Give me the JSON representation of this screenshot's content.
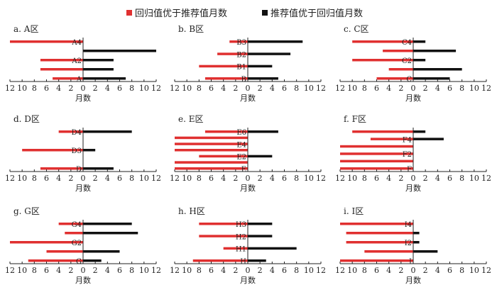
{
  "legend": {
    "red_label": "回归值优于推荐值月数",
    "black_label": "推荐值优于回归值月数"
  },
  "colors": {
    "red": "#e03030",
    "black": "#111111",
    "axis": "#222222"
  },
  "chart_data": [
    {
      "type": "bar",
      "orientation": "diverging-horizontal",
      "title": "a. A区",
      "xlabel": "月数",
      "xlim": [
        -12,
        12
      ],
      "ticks": [
        12,
        10,
        8,
        6,
        4,
        2,
        0,
        2,
        4,
        6,
        8,
        10,
        12
      ],
      "categories": [
        "A4",
        "",
        "A2",
        "",
        "A"
      ],
      "series": [
        {
          "name": "回归值优于推荐值月数",
          "values": [
            12,
            0,
            7,
            7,
            5
          ]
        },
        {
          "name": "推荐值优于回归值月数",
          "values": [
            0,
            12,
            5,
            5,
            7
          ]
        }
      ]
    },
    {
      "type": "bar",
      "orientation": "diverging-horizontal",
      "title": "b. B区",
      "xlabel": "月数",
      "xlim": [
        -12,
        12
      ],
      "ticks": [
        12,
        10,
        8,
        6,
        4,
        2,
        0,
        2,
        4,
        6,
        8,
        10,
        12
      ],
      "categories": [
        "B3",
        "B2",
        "B1",
        "B"
      ],
      "series": [
        {
          "name": "回归值优于推荐值月数",
          "values": [
            3,
            5,
            8,
            7
          ]
        },
        {
          "name": "推荐值优于回归值月数",
          "values": [
            9,
            7,
            4,
            5
          ]
        }
      ]
    },
    {
      "type": "bar",
      "orientation": "diverging-horizontal",
      "title": "c. C区",
      "xlabel": "月数",
      "xlim": [
        -12,
        12
      ],
      "ticks": [
        12,
        10,
        8,
        6,
        4,
        2,
        0,
        2,
        4,
        6,
        8,
        10,
        12
      ],
      "categories": [
        "C4",
        "",
        "C2",
        "",
        "C"
      ],
      "series": [
        {
          "name": "回归值优于推荐值月数",
          "values": [
            10,
            5,
            10,
            4,
            6
          ]
        },
        {
          "name": "推荐值优于回归值月数",
          "values": [
            2,
            7,
            2,
            8,
            6
          ]
        }
      ]
    },
    {
      "type": "bar",
      "orientation": "diverging-horizontal",
      "title": "d. D区",
      "xlabel": "月数",
      "xlim": [
        -12,
        12
      ],
      "ticks": [
        12,
        10,
        8,
        6,
        4,
        2,
        0,
        2,
        4,
        6,
        8,
        10,
        12
      ],
      "categories": [
        "D4",
        "D3",
        "D"
      ],
      "series": [
        {
          "name": "回归值优于推荐值月数",
          "values": [
            4,
            10,
            7
          ]
        },
        {
          "name": "推荐值优于回归值月数",
          "values": [
            8,
            2,
            5
          ]
        }
      ]
    },
    {
      "type": "bar",
      "orientation": "diverging-horizontal",
      "title": "e. E区",
      "xlabel": "月数",
      "xlim": [
        -12,
        12
      ],
      "ticks": [
        12,
        10,
        8,
        6,
        4,
        2,
        0,
        2,
        4,
        6,
        8,
        10,
        12
      ],
      "categories": [
        "E6",
        "",
        "E4",
        "",
        "E2",
        "",
        "E"
      ],
      "series": [
        {
          "name": "回归值优于推荐值月数",
          "values": [
            7,
            12,
            12,
            12,
            8,
            12,
            12
          ]
        },
        {
          "name": "推荐值优于回归值月数",
          "values": [
            5,
            0,
            0,
            0,
            4,
            0,
            0
          ]
        }
      ]
    },
    {
      "type": "bar",
      "orientation": "diverging-horizontal",
      "title": "f. F区",
      "xlabel": "月数",
      "xlim": [
        -12,
        12
      ],
      "ticks": [
        12,
        10,
        8,
        6,
        4,
        2,
        0,
        2,
        4,
        6,
        8,
        10,
        12
      ],
      "categories": [
        "",
        "F4",
        "",
        "F2",
        "",
        "F"
      ],
      "series": [
        {
          "name": "回归值优于推荐值月数",
          "values": [
            10,
            7,
            12,
            12,
            12,
            12
          ]
        },
        {
          "name": "推荐值优于回归值月数",
          "values": [
            2,
            5,
            0,
            0,
            0,
            0
          ]
        }
      ]
    },
    {
      "type": "bar",
      "orientation": "diverging-horizontal",
      "title": "g. G区",
      "xlabel": "月数",
      "xlim": [
        -12,
        12
      ],
      "ticks": [
        12,
        10,
        8,
        6,
        4,
        2,
        0,
        2,
        4,
        6,
        8,
        10,
        12
      ],
      "categories": [
        "G4",
        "",
        "G2",
        "",
        "G"
      ],
      "series": [
        {
          "name": "回归值优于推荐值月数",
          "values": [
            4,
            3,
            12,
            6,
            9
          ]
        },
        {
          "name": "推荐值优于回归值月数",
          "values": [
            8,
            9,
            0,
            6,
            3
          ]
        }
      ]
    },
    {
      "type": "bar",
      "orientation": "diverging-horizontal",
      "title": "h. H区",
      "xlabel": "月数",
      "xlim": [
        -12,
        12
      ],
      "ticks": [
        12,
        10,
        8,
        6,
        4,
        2,
        0,
        2,
        4,
        6,
        8,
        10,
        12
      ],
      "categories": [
        "H3",
        "H2",
        "H1",
        "H"
      ],
      "series": [
        {
          "name": "回归值优于推荐值月数",
          "values": [
            8,
            8,
            4,
            9
          ]
        },
        {
          "name": "推荐值优于回归值月数",
          "values": [
            4,
            4,
            8,
            3
          ]
        }
      ]
    },
    {
      "type": "bar",
      "orientation": "diverging-horizontal",
      "title": "i. I区",
      "xlabel": "月数",
      "xlim": [
        -12,
        12
      ],
      "ticks": [
        12,
        10,
        8,
        6,
        4,
        2,
        0,
        2,
        4,
        6,
        8,
        10,
        12
      ],
      "categories": [
        "I4",
        "",
        "I2",
        "",
        "I"
      ],
      "series": [
        {
          "name": "回归值优于推荐值月数",
          "values": [
            12,
            11,
            11,
            8,
            12
          ]
        },
        {
          "name": "推荐值优于回归值月数",
          "values": [
            0,
            1,
            1,
            4,
            0
          ]
        }
      ]
    }
  ]
}
